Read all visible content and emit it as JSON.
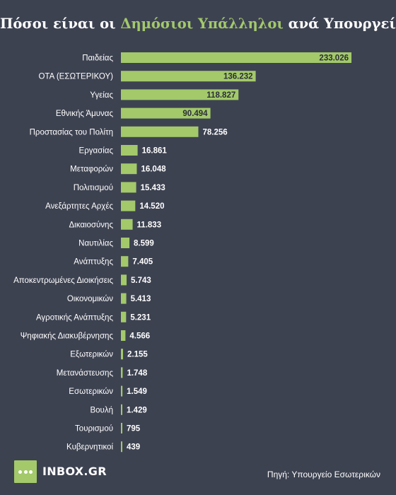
{
  "title": {
    "prefix": "Πόσοι είναι οι ",
    "highlight": "Δημόσιοι Υπάλληλοι",
    "suffix": " ανά Υπουργείο;"
  },
  "colors": {
    "background": "#3d4251",
    "bar": "#a3c96a",
    "text": "#ffffff",
    "highlight": "#a3c96a",
    "inside_label": "#2b2f38"
  },
  "chart_data": {
    "type": "bar",
    "orientation": "horizontal",
    "categories": [
      "Παιδείας",
      "ΟΤΑ (ΕΣΩΤΕΡΙΚΟΥ)",
      "Υγείας",
      "Εθνικής Άμυνας",
      "Προστασίας του Πολίτη",
      "Εργασίας",
      "Μεταφορών",
      "Πολιτισμού",
      "Ανεξάρτητες Αρχές",
      "Δικαιοσύνης",
      "Ναυτιλίας",
      "Ανάπτυξης",
      "Αποκεντρωμένες Διοικήσεις",
      "Οικονομικών",
      "Αγροτικής Ανάπτυξης",
      "Ψηφιακής Διακυβέρνησης",
      "Εξωτερικών",
      "Μετανάστευσης",
      "Εσωτερικών",
      "Βουλή",
      "Τουρισμού",
      "Κυβερνητικοί"
    ],
    "values": [
      233026,
      136232,
      118827,
      90494,
      78256,
      16861,
      16048,
      15433,
      14520,
      11833,
      8599,
      7405,
      5743,
      5413,
      5231,
      4566,
      2155,
      1748,
      1549,
      1429,
      795,
      439
    ],
    "labels": [
      "233.026",
      "136.232",
      "118.827",
      "90.494",
      "78.256",
      "16.861",
      "16.048",
      "15.433",
      "14.520",
      "11.833",
      "8.599",
      "7.405",
      "5.743",
      "5.413",
      "5.231",
      "4.566",
      "2.155",
      "1.748",
      "1.549",
      "1.429",
      "795",
      "439"
    ],
    "title": "Πόσοι είναι οι Δημόσιοι Υπάλληλοι ανά Υπουργείο;",
    "xlabel": "",
    "ylabel": "",
    "grid": false,
    "legend": "none"
  },
  "footer": {
    "brand": "INBOX.GR",
    "source": "Πηγή: Υπουργείο Εσωτερικών"
  }
}
